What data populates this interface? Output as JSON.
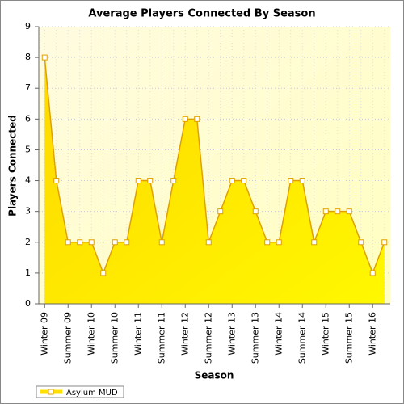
{
  "chart_data": {
    "type": "area",
    "title": "Average Players Connected By Season",
    "x_label": "Season",
    "y_label": "Players Connected",
    "categories": [
      "Winter 09",
      null,
      "Summer 09",
      null,
      "Winter 10",
      null,
      "Summer 10",
      null,
      "Winter 11",
      null,
      "Summer 11",
      null,
      "Winter 12",
      null,
      "Summer 12",
      null,
      "Winter 13",
      null,
      "Summer 13",
      null,
      "Winter 14",
      null,
      "Summer 14",
      null,
      "Winter 15",
      null,
      "Summer 15",
      null,
      "Winter 16",
      null
    ],
    "series": [
      {
        "name": "Asylum MUD",
        "color": "#ffe000",
        "values": [
          8,
          4,
          2,
          2,
          2,
          1,
          2,
          2,
          4,
          4,
          2,
          4,
          6,
          6,
          2,
          3,
          4,
          4,
          3,
          2,
          2,
          4,
          4,
          2,
          3,
          3,
          3,
          2,
          1,
          2
        ]
      }
    ],
    "ylim": [
      0,
      9
    ],
    "yticks": [
      0,
      1,
      2,
      3,
      4,
      5,
      6,
      7,
      8,
      9
    ],
    "grid": true,
    "legend": "bottom-left"
  }
}
